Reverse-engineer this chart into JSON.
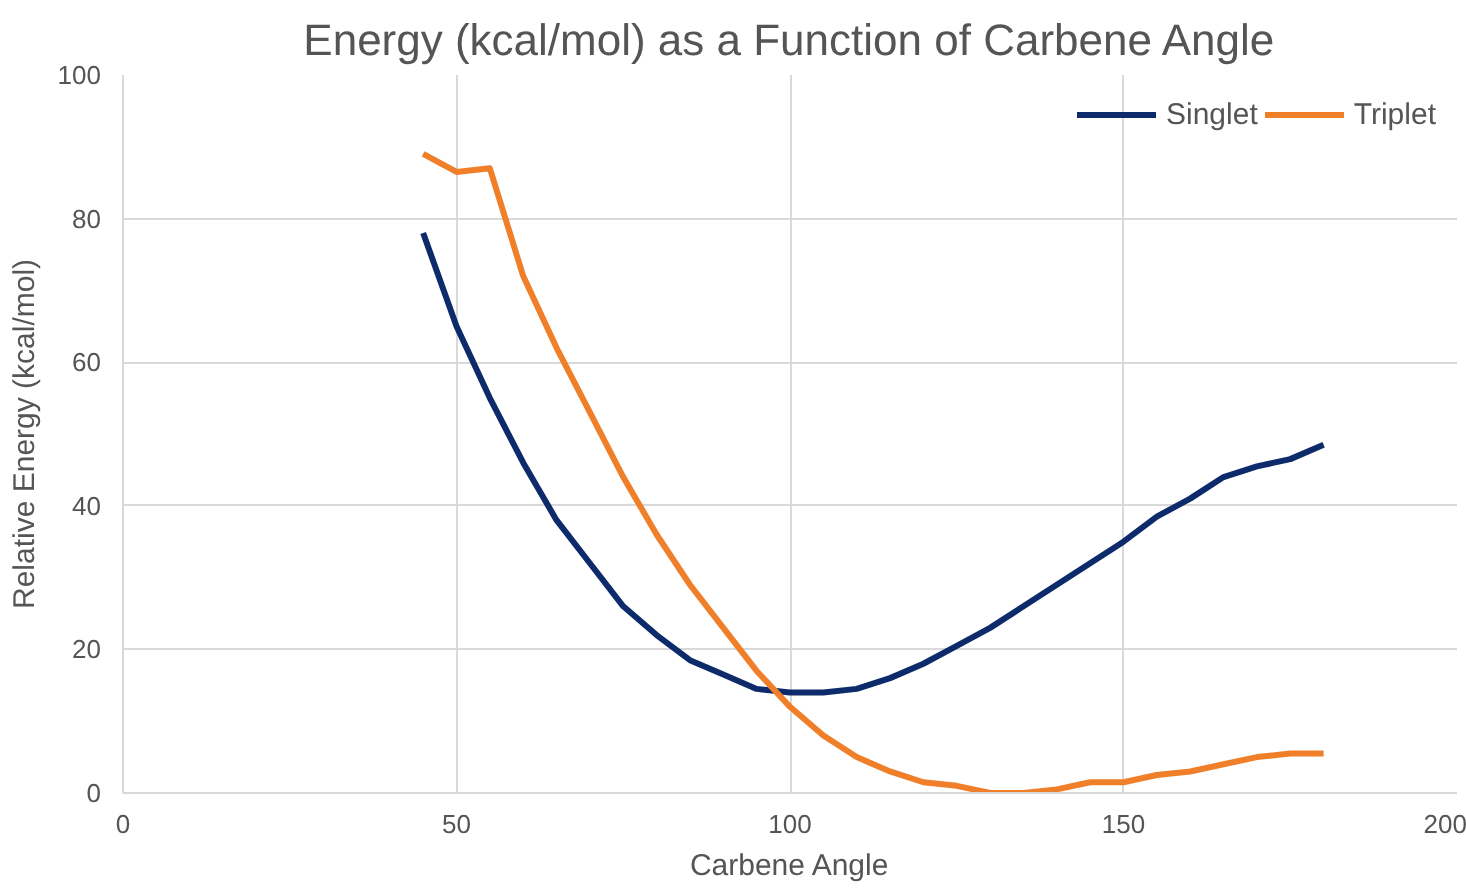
{
  "chart_data": {
    "type": "line",
    "title": "Energy (kcal/mol) as a Function of Carbene Angle",
    "xlabel": "Carbene Angle",
    "ylabel": "Relative Energy (kcal/mol)",
    "x": [
      45,
      50,
      55,
      60,
      65,
      70,
      75,
      80,
      85,
      90,
      95,
      100,
      105,
      110,
      115,
      120,
      125,
      130,
      135,
      140,
      145,
      150,
      155,
      160,
      165,
      170,
      175,
      180
    ],
    "series": [
      {
        "name": "Singlet",
        "color": "#0d2b6b",
        "values": [
          78,
          65,
          55,
          46,
          38,
          32,
          26,
          22,
          18.5,
          16.5,
          14.5,
          14,
          14,
          14.5,
          16,
          18,
          20.5,
          23,
          26,
          29,
          32,
          35,
          38.5,
          41,
          44,
          45.5,
          46.5,
          48.5
        ]
      },
      {
        "name": "Triplet",
        "color": "#f07f2a",
        "values": [
          89,
          86.5,
          87,
          72,
          62,
          53,
          44,
          36,
          29,
          23,
          17,
          12,
          8,
          5,
          3,
          1.5,
          1,
          0,
          0,
          0.5,
          1.5,
          1.5,
          2.5,
          3,
          4,
          5,
          5.5,
          5.5
        ]
      }
    ],
    "xlim": [
      0,
      200
    ],
    "ylim": [
      0,
      100
    ],
    "xticks": [
      0,
      50,
      100,
      150,
      200
    ],
    "yticks": [
      0,
      20,
      40,
      60,
      80,
      100
    ],
    "grid": true,
    "legend": "top right",
    "marker": "none",
    "line_style": "solid"
  }
}
